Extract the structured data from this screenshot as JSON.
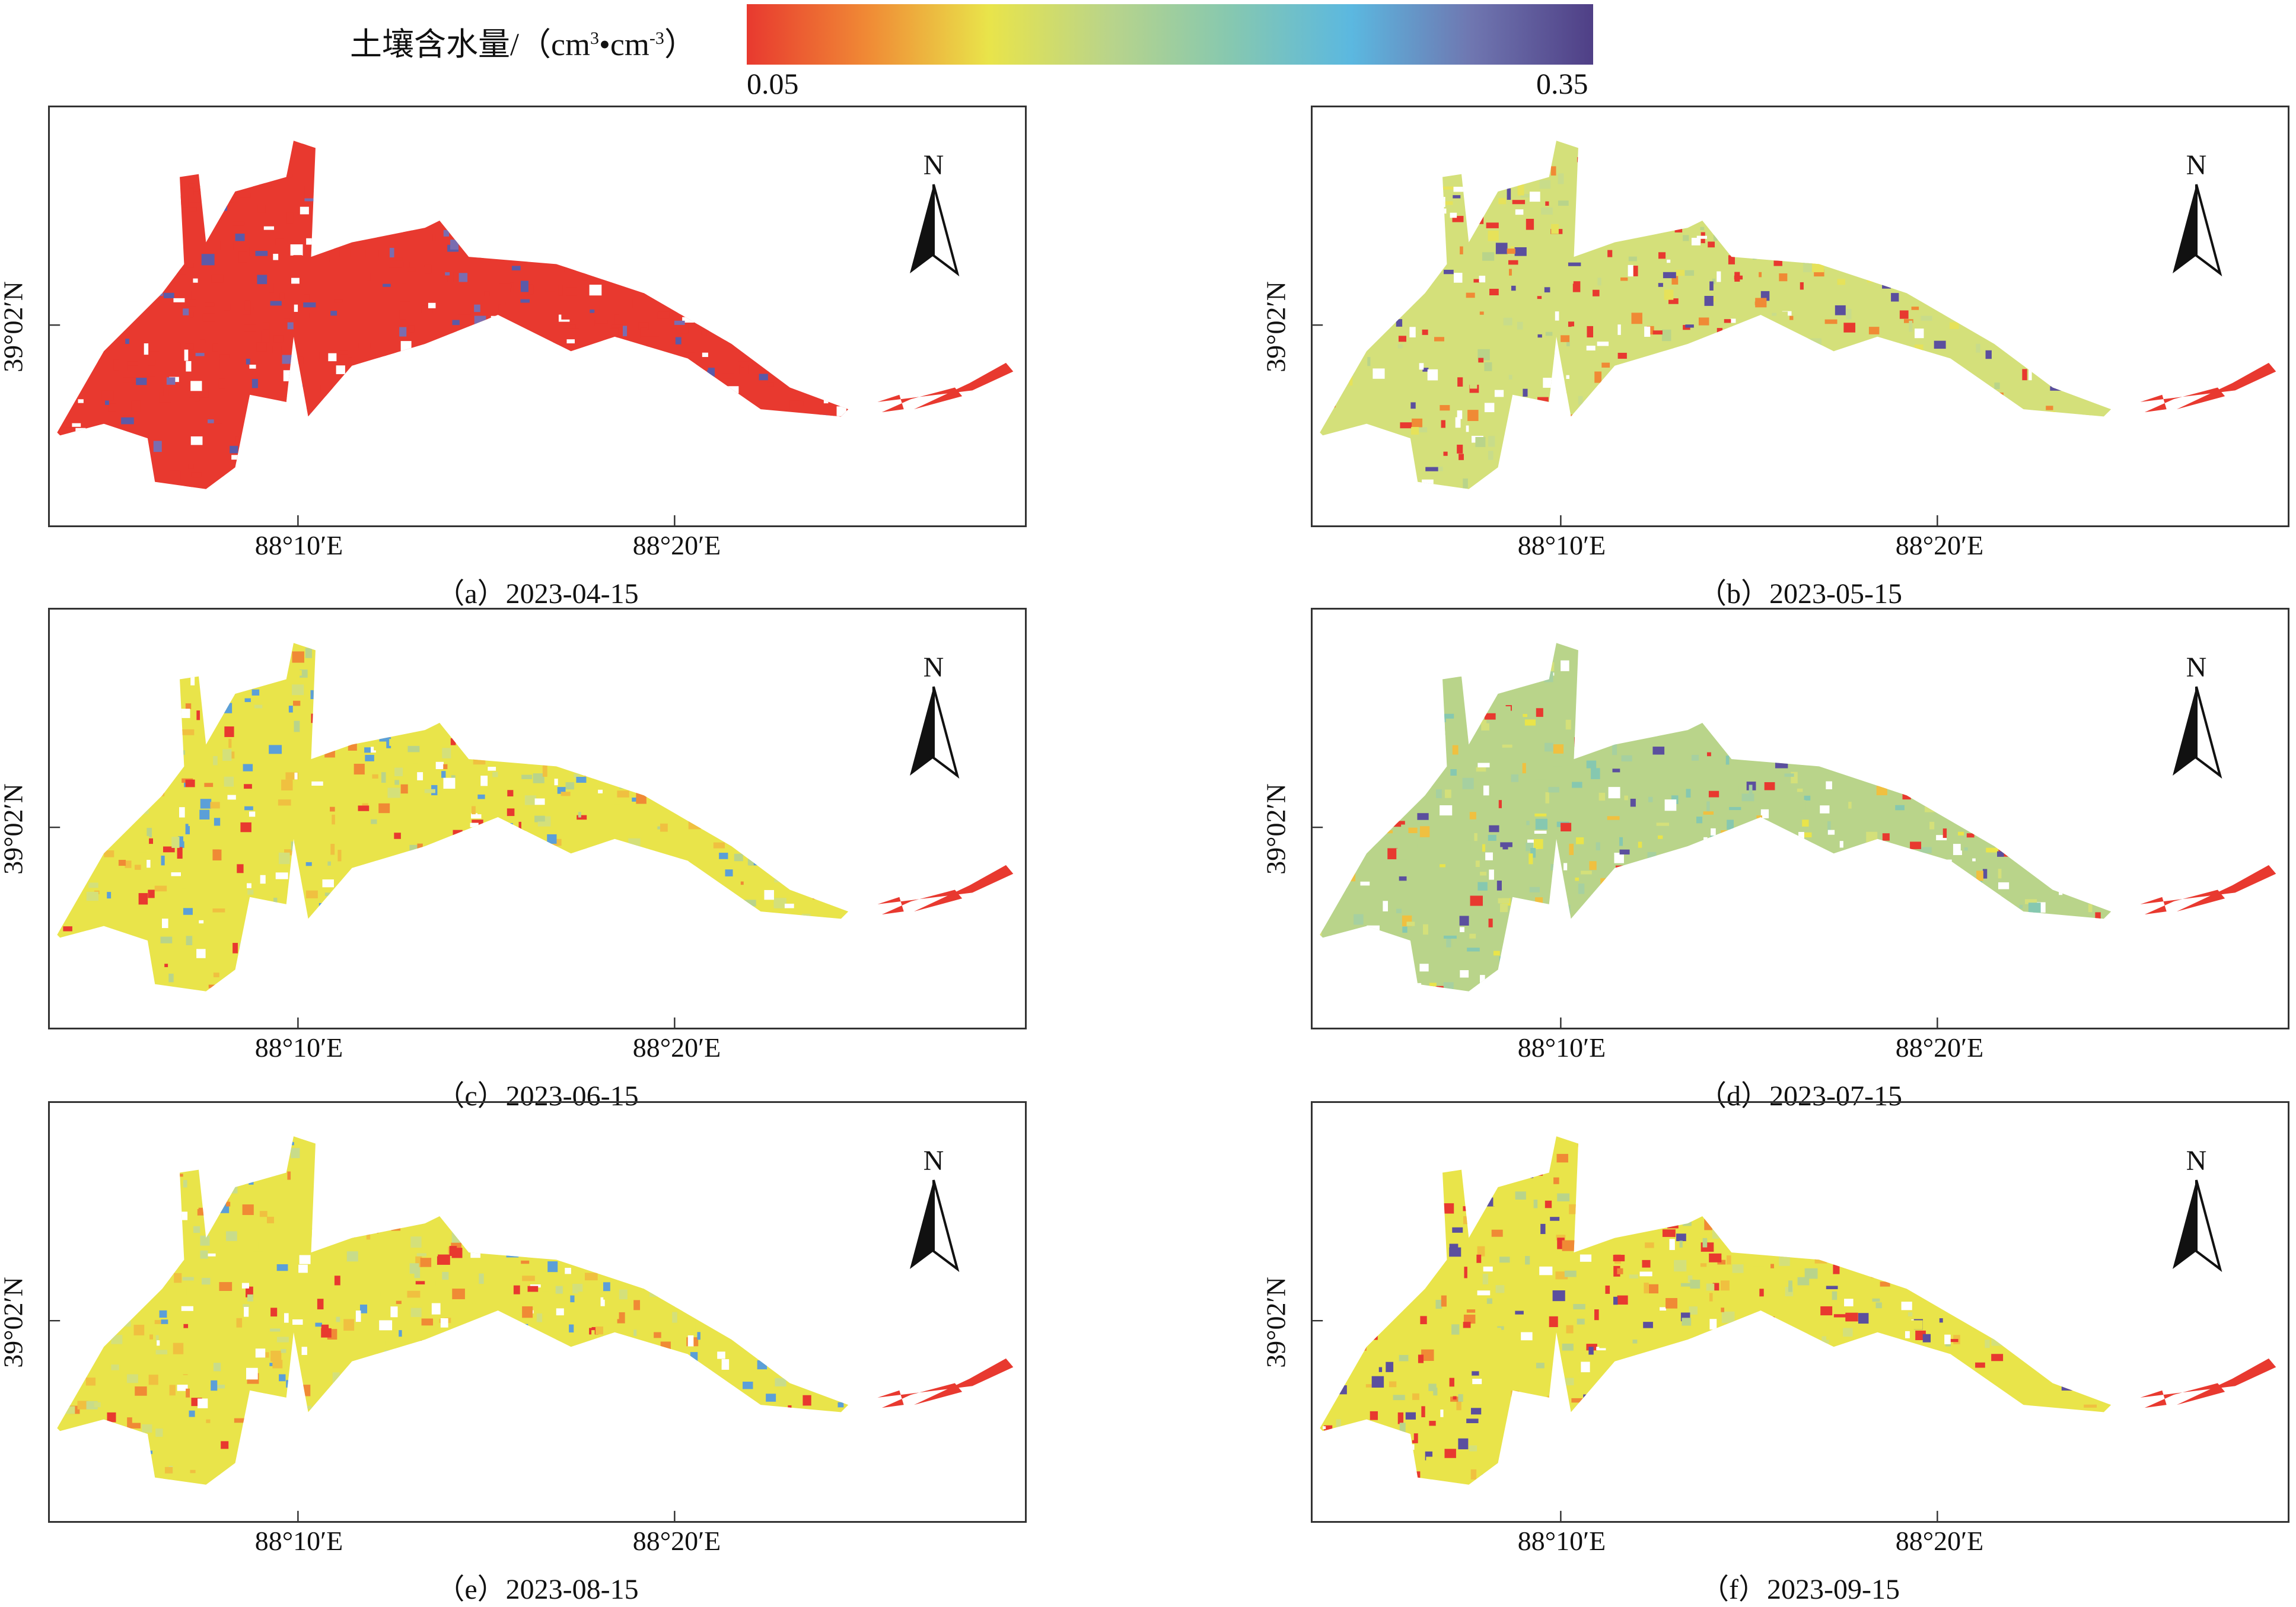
{
  "legend": {
    "title": "土壤含水量/（cm³•cm⁻³）",
    "title_main": "土壤含水量/（cm",
    "title_mid": "•cm",
    "title_end": "）",
    "sup1": "3",
    "sup2": "-3",
    "min": "0.05",
    "max": "0.35",
    "colors": [
      "#e8392f",
      "#f08a35",
      "#e9e44a",
      "#b9d48a",
      "#86c8b0",
      "#5bb8e0",
      "#6f76b0",
      "#4f3f86"
    ]
  },
  "axes": {
    "x_ticks": [
      "88°10′E",
      "88°20′E"
    ],
    "y_tick": "39°02′N",
    "north_label": "N"
  },
  "panels": [
    {
      "caption": "（a）2023-04-15",
      "palette": [
        "#e8392f",
        "#e8392f",
        "#e8392f",
        "#e8392f",
        "#e8392f",
        "#e8392f",
        "#7a6db0",
        "#5b5aa8"
      ]
    },
    {
      "caption": "（b）2023-05-15",
      "palette": [
        "#d4e07a",
        "#c8dc8a",
        "#e6e25a",
        "#b9d48a",
        "#e8392f",
        "#e8392f",
        "#5b4f9e",
        "#f08a35"
      ]
    },
    {
      "caption": "（c）2023-06-15",
      "palette": [
        "#e9e44a",
        "#f0c040",
        "#d4e07a",
        "#f08a35",
        "#b9d48a",
        "#5b9fd8",
        "#e8392f",
        "#e9e44a"
      ]
    },
    {
      "caption": "（d）2023-07-15",
      "palette": [
        "#b9d48a",
        "#a6d0a0",
        "#d4e07a",
        "#e9e44a",
        "#86c8b0",
        "#f0c040",
        "#5b4f9e",
        "#e8392f"
      ]
    },
    {
      "caption": "（e）2023-08-15",
      "palette": [
        "#e9e44a",
        "#d4e07a",
        "#e9e44a",
        "#f0c040",
        "#c8dc8a",
        "#f08a35",
        "#5b9fd8",
        "#e8392f"
      ]
    },
    {
      "caption": "（f）2023-09-15",
      "palette": [
        "#e9e44a",
        "#f0c040",
        "#d4e07a",
        "#f08a35",
        "#e8392f",
        "#e8392f",
        "#5b4f9e",
        "#b9d48a"
      ]
    }
  ]
}
